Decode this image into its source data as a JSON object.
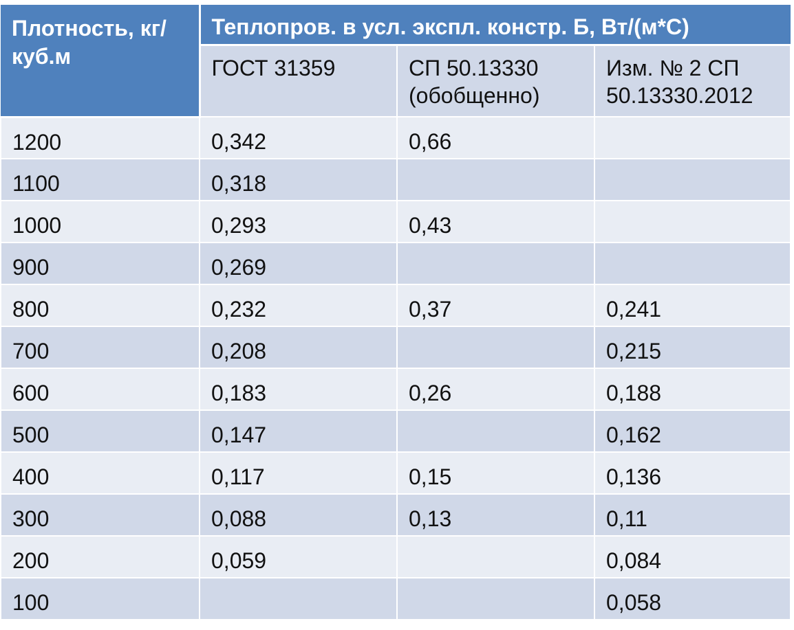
{
  "header": {
    "density_label": "Плотность, кг/куб.м",
    "group_label": "Теплопров. в усл. экспл. констр. Б, Вт/(м*С)",
    "sub_columns": [
      "ГОСТ 31359",
      "СП 50.13330 (обобщенно)",
      "Изм. № 2 СП 50.13330.2012"
    ]
  },
  "rows": [
    {
      "density": "1200",
      "gost": "0,342",
      "sp": "0,66",
      "izm": ""
    },
    {
      "density": "1100",
      "gost": "0,318",
      "sp": "",
      "izm": ""
    },
    {
      "density": "1000",
      "gost": "0,293",
      "sp": "0,43",
      "izm": ""
    },
    {
      "density": "900",
      "gost": "0,269",
      "sp": "",
      "izm": ""
    },
    {
      "density": "800",
      "gost": "0,232",
      "sp": "0,37",
      "izm": "0,241"
    },
    {
      "density": "700",
      "gost": "0,208",
      "sp": "",
      "izm": "0,215"
    },
    {
      "density": "600",
      "gost": "0,183",
      "sp": "0,26",
      "izm": "0,188"
    },
    {
      "density": "500",
      "gost": "0,147",
      "sp": "",
      "izm": "0,162"
    },
    {
      "density": "400",
      "gost": "0,117",
      "sp": "0,15",
      "izm": "0,136"
    },
    {
      "density": "300",
      "gost": "0,088",
      "sp": "0,13",
      "izm": "0,11"
    },
    {
      "density": "200",
      "gost": "0,059",
      "sp": "",
      "izm": "0,084"
    },
    {
      "density": "100",
      "gost": "",
      "sp": "",
      "izm": "0,058"
    }
  ],
  "colors": {
    "header_bg": "#4f81bd",
    "row_light": "#e9edf4",
    "row_dark": "#d0d8e8"
  }
}
